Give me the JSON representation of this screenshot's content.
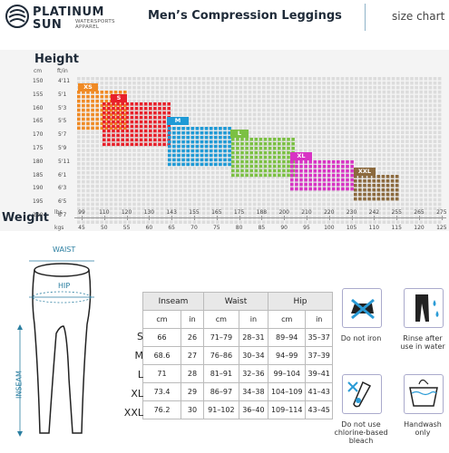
{
  "header": {
    "brand_line1": "PLATINUM",
    "brand_line2": "SUN",
    "brand_sub": "WATERSPORTS APPAREL",
    "title": "Men’s Compression Leggings",
    "right": "size chart"
  },
  "chart": {
    "height_title": "Height",
    "height_unit_cm": "cm",
    "height_unit_ft": "ft/in",
    "heights_cm": [
      "150",
      "155",
      "160",
      "165",
      "170",
      "175",
      "180",
      "185",
      "190",
      "195",
      "200"
    ],
    "heights_ft": [
      "4'11",
      "5'1",
      "5'3",
      "5'5",
      "5'7",
      "5'9",
      "5'11",
      "6'1",
      "6'3",
      "6'5",
      "6'7"
    ],
    "weight_title": "Weight",
    "lbs_unit": "lbs",
    "kgs_unit": "kgs",
    "lbs": [
      "99",
      "110",
      "120",
      "130",
      "143",
      "155",
      "165",
      "175",
      "188",
      "200",
      "210",
      "220",
      "230",
      "242",
      "255",
      "265",
      "275"
    ],
    "kgs": [
      "45",
      "50",
      "55",
      "60",
      "65",
      "70",
      "75",
      "80",
      "85",
      "90",
      "95",
      "100",
      "105",
      "110",
      "115",
      "120",
      "125"
    ],
    "sizes": [
      {
        "label": "XS",
        "color": "#f08a24"
      },
      {
        "label": "S",
        "color": "#e8202a"
      },
      {
        "label": "M",
        "color": "#1f9ad6"
      },
      {
        "label": "L",
        "color": "#7bc043"
      },
      {
        "label": "XL",
        "color": "#d832c4"
      },
      {
        "label": "XXL",
        "color": "#8c6a3e"
      }
    ]
  },
  "figure": {
    "waist": "WAIST",
    "hip": "HIP",
    "inseam": "INSEAM"
  },
  "table": {
    "groups": [
      "Inseam",
      "Waist",
      "Hip"
    ],
    "units": [
      "cm",
      "in",
      "cm",
      "in",
      "cm",
      "in"
    ],
    "rows": [
      {
        "size": "S",
        "vals": [
          "66",
          "26",
          "71–79",
          "28–31",
          "89–94",
          "35–37"
        ]
      },
      {
        "size": "M",
        "vals": [
          "68.6",
          "27",
          "76–86",
          "30–34",
          "94–99",
          "37–39"
        ]
      },
      {
        "size": "L",
        "vals": [
          "71",
          "28",
          "81–91",
          "32–36",
          "99–104",
          "39–41"
        ]
      },
      {
        "size": "XL",
        "vals": [
          "73.4",
          "29",
          "86–97",
          "34–38",
          "104–109",
          "41–43"
        ]
      },
      {
        "size": "XXL",
        "vals": [
          "76.2",
          "30",
          "91–102",
          "36–40",
          "109–114",
          "43–45"
        ]
      }
    ]
  },
  "care": {
    "no_iron": "Do not iron",
    "rinse": "Rinse after use in water",
    "no_bleach": "Do not use chlorine-based bleach",
    "handwash": "Handwash only"
  }
}
